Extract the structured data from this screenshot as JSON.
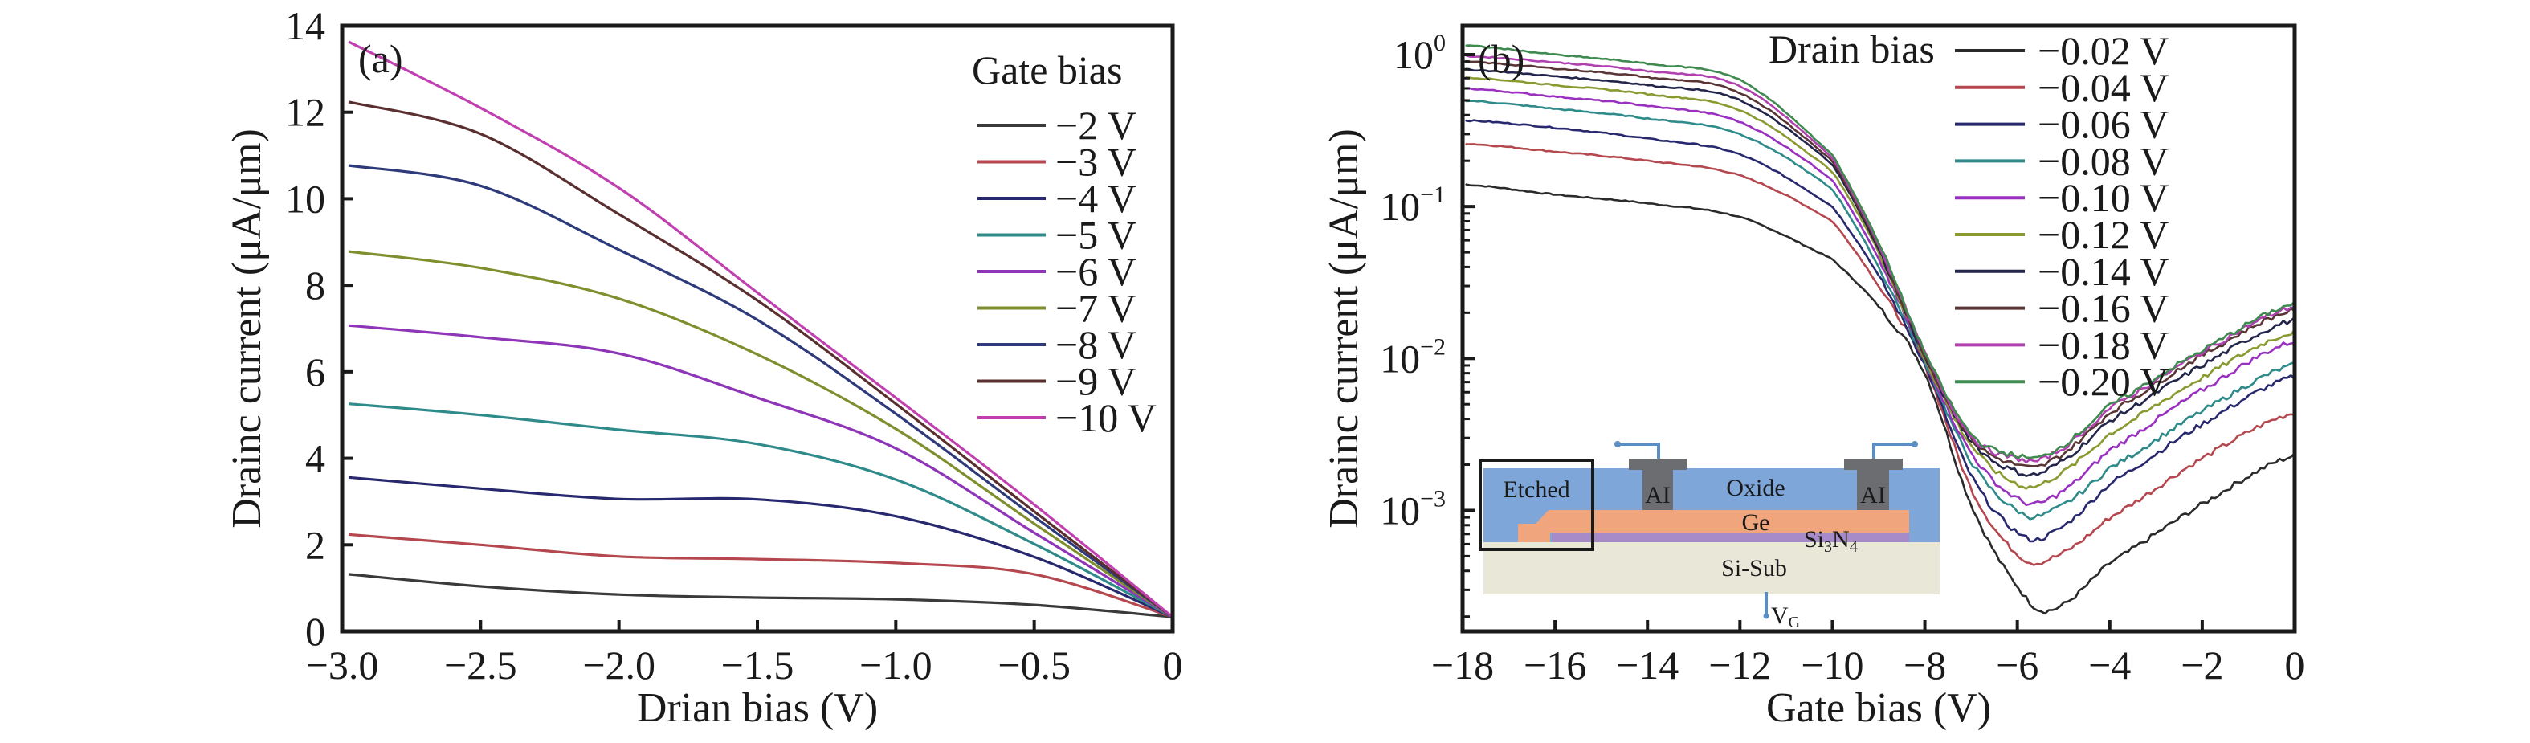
{
  "figure": {
    "panels": [
      "(a)",
      "(b)"
    ]
  },
  "chart_data": [
    {
      "type": "line",
      "panel_label": "(a)",
      "title": "",
      "xlabel": "Drian bias (V)",
      "ylabel": "Drainc current (μA/μm)",
      "xlim": [
        -3.0,
        0
      ],
      "ylim": [
        0,
        14
      ],
      "xscale": "linear",
      "yscale": "linear",
      "xticks": [
        -3.0,
        -2.5,
        -2.0,
        -1.5,
        -1.0,
        -0.5,
        0
      ],
      "xtick_labels": [
        "−3.0",
        "−2.5",
        "−2.0",
        "−1.5",
        "−1.0",
        "−0.5",
        "0"
      ],
      "yticks": [
        0,
        2,
        4,
        6,
        8,
        10,
        12,
        14
      ],
      "ytick_labels": [
        "0",
        "2",
        "4",
        "6",
        "8",
        "10",
        "12",
        "14"
      ],
      "grid": false,
      "legend": {
        "title": "Gate bias",
        "placement": "top-right"
      },
      "x": [
        -3.0,
        -2.5,
        -2.0,
        -1.5,
        -1.0,
        -0.5,
        0
      ],
      "series": [
        {
          "name": "−2 V",
          "color": "#3a3a3a",
          "values": [
            1.32,
            1.04,
            0.85,
            0.78,
            0.74,
            0.61,
            0.33
          ]
        },
        {
          "name": "−3 V",
          "color": "#b5474f",
          "values": [
            2.24,
            2.0,
            1.73,
            1.67,
            1.58,
            1.32,
            0.33
          ]
        },
        {
          "name": "−4 V",
          "color": "#27286e",
          "values": [
            3.56,
            3.3,
            3.06,
            3.05,
            2.66,
            1.72,
            0.33
          ]
        },
        {
          "name": "−5 V",
          "color": "#2f8a8a",
          "values": [
            5.26,
            5.0,
            4.66,
            4.33,
            3.51,
            2.02,
            0.33
          ]
        },
        {
          "name": "−6 V",
          "color": "#8e35b8",
          "values": [
            7.07,
            6.8,
            6.42,
            5.4,
            4.23,
            2.28,
            0.33
          ]
        },
        {
          "name": "−7 V",
          "color": "#7f8f2e",
          "values": [
            8.78,
            8.4,
            7.69,
            6.4,
            4.68,
            2.49,
            0.33
          ]
        },
        {
          "name": "−8 V",
          "color": "#2e3a7a",
          "values": [
            10.77,
            10.3,
            8.82,
            7.2,
            5.03,
            2.65,
            0.33
          ]
        },
        {
          "name": "−9 V",
          "color": "#5a2f2f",
          "values": [
            12.24,
            11.5,
            9.64,
            7.65,
            5.26,
            2.77,
            0.33
          ]
        },
        {
          "name": "−10 V",
          "color": "#c040b0",
          "values": [
            13.63,
            12.1,
            10.25,
            7.83,
            5.4,
            2.93,
            0.33
          ]
        }
      ]
    },
    {
      "type": "line",
      "panel_label": "(b)",
      "title": "",
      "xlabel": "Gate bias (V)",
      "ylabel": "Drainc current (μA/μm)",
      "xlim": [
        -18,
        0
      ],
      "ylim": [
        0.00016,
        1.55
      ],
      "xscale": "linear",
      "yscale": "log",
      "xticks": [
        -18,
        -16,
        -14,
        -12,
        -10,
        -8,
        -6,
        -4,
        -2,
        0
      ],
      "xtick_labels": [
        "−18",
        "−16",
        "−14",
        "−12",
        "−10",
        "−8",
        "−6",
        "−4",
        "−2",
        "0"
      ],
      "yticks": [
        0.001,
        0.01,
        0.1,
        1
      ],
      "ytick_labels": [
        {
          "base": "10",
          "exp": "−3"
        },
        {
          "base": "10",
          "exp": "−2"
        },
        {
          "base": "10",
          "exp": "−1"
        },
        {
          "base": "10",
          "exp": "0"
        }
      ],
      "grid": false,
      "legend": {
        "title": "Drain bias",
        "placement": "top-right"
      },
      "x": [
        -18,
        -16,
        -14,
        -12,
        -10,
        -9,
        -8,
        -7,
        -6,
        -5.3,
        -4,
        -2,
        0
      ],
      "series": [
        {
          "name": "−0.02 V",
          "color": "#2a2a2a",
          "values": [
            0.14,
            0.12,
            0.105,
            0.085,
            0.045,
            0.022,
            0.008,
            0.0011,
            0.00032,
            0.00022,
            0.00045,
            0.0011,
            0.0023
          ]
        },
        {
          "name": "−0.04 V",
          "color": "#b5474f",
          "values": [
            0.26,
            0.23,
            0.2,
            0.16,
            0.08,
            0.03,
            0.009,
            0.0014,
            0.00052,
            0.00048,
            0.0009,
            0.0022,
            0.0044
          ]
        },
        {
          "name": "−0.06 V",
          "color": "#27286e",
          "values": [
            0.37,
            0.33,
            0.28,
            0.22,
            0.1,
            0.035,
            0.009,
            0.0017,
            0.00072,
            0.0007,
            0.0015,
            0.0037,
            0.0076
          ]
        },
        {
          "name": "−0.08 V",
          "color": "#2f8a8a",
          "values": [
            0.5,
            0.44,
            0.38,
            0.3,
            0.13,
            0.04,
            0.0095,
            0.0021,
            0.001,
            0.00098,
            0.0019,
            0.0045,
            0.0091
          ]
        },
        {
          "name": "−0.10 V",
          "color": "#9a30c0",
          "values": [
            0.6,
            0.53,
            0.46,
            0.36,
            0.15,
            0.045,
            0.0098,
            0.0024,
            0.0012,
            0.0012,
            0.0025,
            0.0062,
            0.013
          ]
        },
        {
          "name": "−0.12 V",
          "color": "#8a9a30",
          "values": [
            0.71,
            0.63,
            0.55,
            0.43,
            0.17,
            0.05,
            0.01,
            0.0027,
            0.0015,
            0.0016,
            0.0032,
            0.0075,
            0.015
          ]
        },
        {
          "name": "−0.14 V",
          "color": "#22244a",
          "values": [
            0.8,
            0.72,
            0.63,
            0.5,
            0.19,
            0.052,
            0.0102,
            0.0029,
            0.0018,
            0.0019,
            0.0039,
            0.009,
            0.018
          ]
        },
        {
          "name": "−0.16 V",
          "color": "#5a3535",
          "values": [
            0.9,
            0.81,
            0.71,
            0.56,
            0.2,
            0.054,
            0.0105,
            0.003,
            0.002,
            0.0021,
            0.0044,
            0.0105,
            0.021
          ]
        },
        {
          "name": "−0.18 V",
          "color": "#b040b0",
          "values": [
            0.98,
            0.89,
            0.78,
            0.62,
            0.21,
            0.056,
            0.0108,
            0.0031,
            0.0022,
            0.0023,
            0.0047,
            0.011,
            0.022
          ]
        },
        {
          "name": "−0.20 V",
          "color": "#3f8a4f",
          "values": [
            1.15,
            1.0,
            0.87,
            0.68,
            0.22,
            0.058,
            0.011,
            0.0032,
            0.0023,
            0.0024,
            0.0049,
            0.0113,
            0.023
          ]
        }
      ]
    }
  ],
  "inset": {
    "etched_label": "Etched",
    "al_left_label": "AI",
    "al_right_label": "AI",
    "oxide_label": "Oxide",
    "ge_label": "Ge",
    "si3n4_label": {
      "base": "Si",
      "sub1": "3",
      "mid": "N",
      "sub2": "4"
    },
    "sisub_label": "Si-Sub",
    "vg_label": {
      "base": "V",
      "sub": "G"
    },
    "colors": {
      "oxide": "#7fa6d8",
      "ge": "#f1a57c",
      "si3n4": "#a78ac8",
      "substrate": "#e9e7d8",
      "al": "#6b6d70",
      "wire": "#5b8fc4"
    }
  }
}
